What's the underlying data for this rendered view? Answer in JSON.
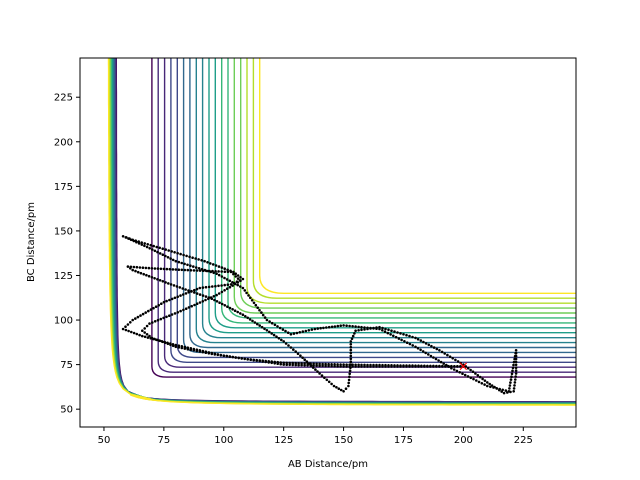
{
  "chart_data": {
    "type": "contour",
    "title": "",
    "xlabel": "AB Distance/pm",
    "ylabel": "BC Distance/pm",
    "xlim": [
      40,
      247
    ],
    "ylim": [
      40,
      247
    ],
    "xticks": [
      50,
      75,
      100,
      125,
      150,
      175,
      200,
      225
    ],
    "yticks": [
      50,
      75,
      100,
      125,
      150,
      175,
      200,
      225
    ],
    "grid": false,
    "contour_levels": 18,
    "colormap": [
      "#440154",
      "#482878",
      "#3e4989",
      "#31688e",
      "#26828e",
      "#1f9e89",
      "#35b779",
      "#6ece58",
      "#b5de2b",
      "#fde725"
    ],
    "trajectory_color": "#000000",
    "marker": {
      "x": 200,
      "y": 74,
      "symbol": "×",
      "color": "#ff0000"
    },
    "trajectory": [
      [
        200,
        74
      ],
      [
        175,
        74.5
      ],
      [
        150,
        75
      ],
      [
        125,
        76
      ],
      [
        110,
        78
      ],
      [
        95,
        81
      ],
      [
        80,
        85
      ],
      [
        70,
        90
      ],
      [
        66,
        94
      ],
      [
        69,
        98
      ],
      [
        82,
        105
      ],
      [
        97,
        114
      ],
      [
        107,
        122
      ],
      [
        103,
        127
      ],
      [
        85,
        128
      ],
      [
        70,
        129
      ],
      [
        60,
        130
      ],
      [
        62,
        128
      ],
      [
        78,
        120
      ],
      [
        95,
        112
      ],
      [
        108,
        103
      ],
      [
        116,
        96
      ],
      [
        125,
        88
      ],
      [
        132,
        80
      ],
      [
        140,
        70
      ],
      [
        146,
        63
      ],
      [
        150,
        60
      ],
      [
        152,
        63
      ],
      [
        153,
        75
      ],
      [
        153,
        88
      ],
      [
        155,
        94
      ],
      [
        165,
        96
      ],
      [
        180,
        90
      ],
      [
        190,
        83
      ],
      [
        200,
        75
      ],
      [
        210,
        65
      ],
      [
        217,
        59
      ],
      [
        221,
        60
      ],
      [
        222,
        70
      ],
      [
        222,
        83
      ],
      [
        219,
        60
      ],
      [
        210,
        63
      ],
      [
        195,
        73
      ],
      [
        180,
        85
      ],
      [
        165,
        95
      ],
      [
        150,
        97
      ],
      [
        138,
        95
      ],
      [
        128,
        92
      ],
      [
        118,
        100
      ],
      [
        108,
        118
      ],
      [
        97,
        126
      ],
      [
        80,
        133
      ],
      [
        68,
        141
      ],
      [
        58,
        147
      ],
      [
        62,
        145
      ],
      [
        77,
        139
      ],
      [
        92,
        133
      ],
      [
        104,
        127
      ],
      [
        108,
        123
      ],
      [
        103,
        120
      ],
      [
        90,
        118
      ],
      [
        75,
        110
      ],
      [
        62,
        100
      ],
      [
        58,
        95
      ],
      [
        66,
        91
      ],
      [
        80,
        86
      ],
      [
        100,
        80
      ],
      [
        125,
        75
      ],
      [
        150,
        74
      ],
      [
        175,
        74
      ],
      [
        200,
        74
      ]
    ]
  }
}
